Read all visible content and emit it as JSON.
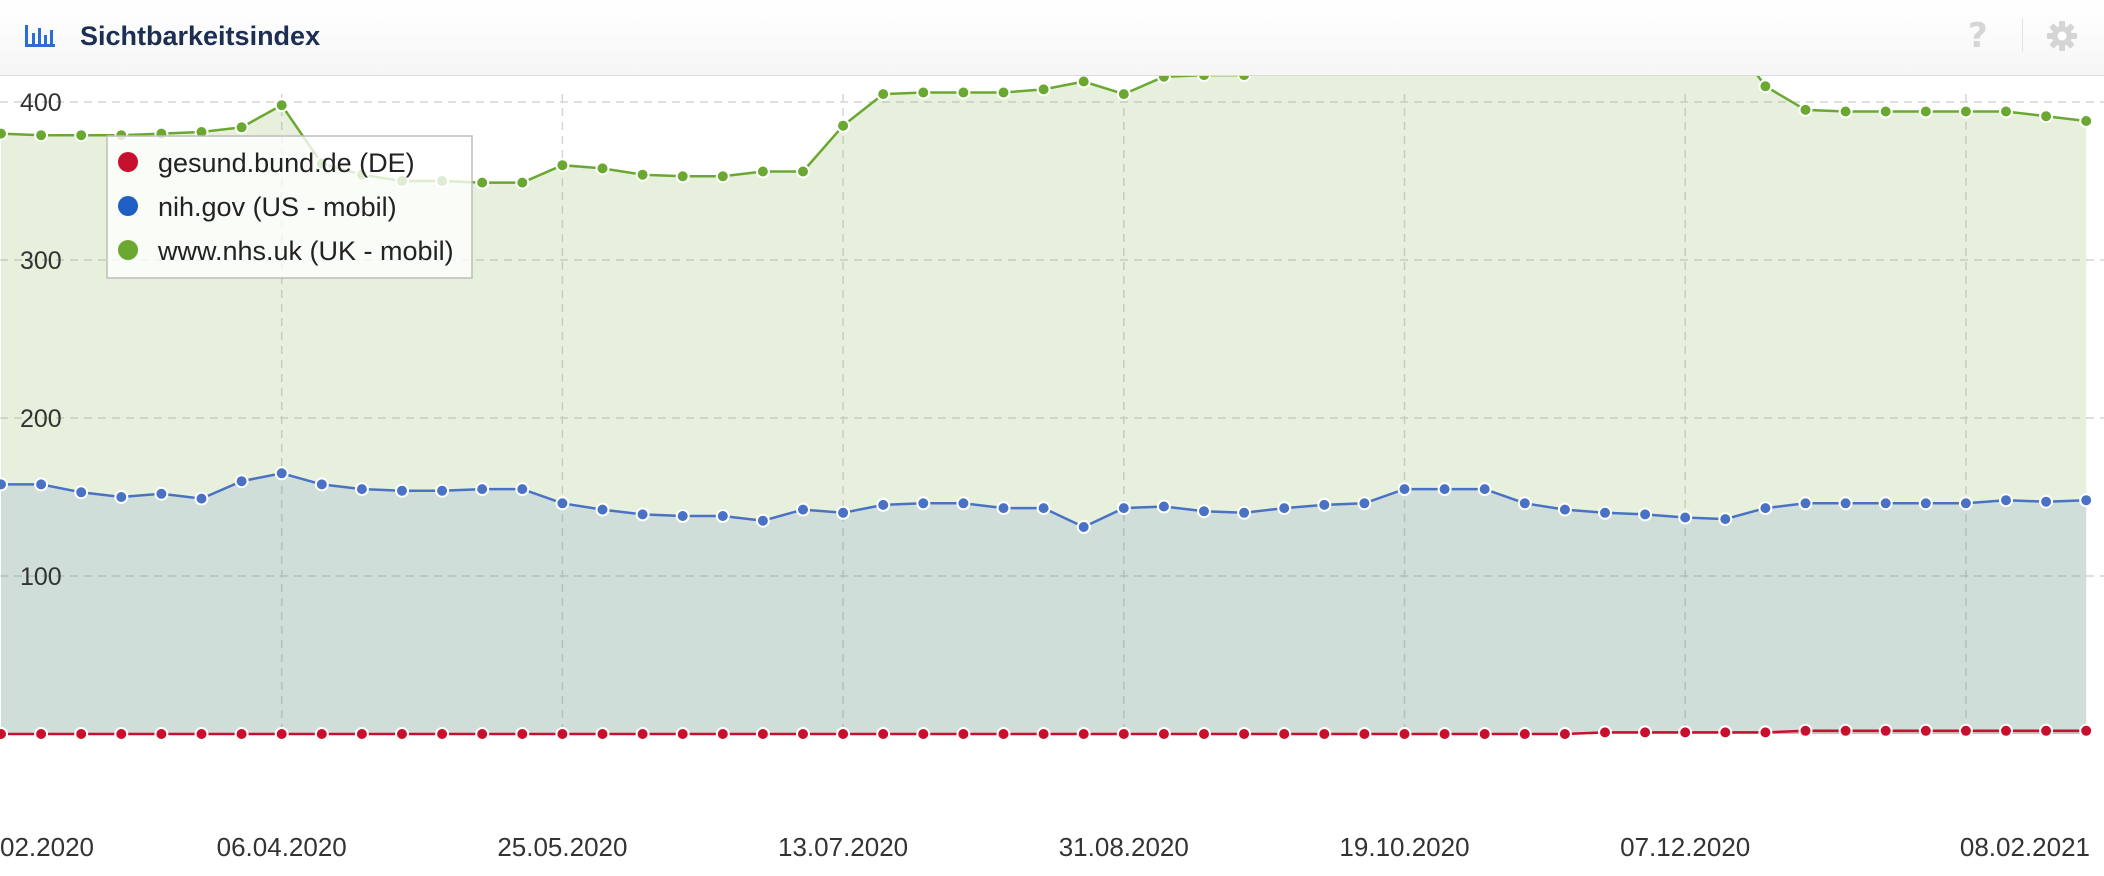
{
  "header": {
    "title": "Sichtbarkeitsindex",
    "help_symbol": "?"
  },
  "colors": {
    "red": "#c8102e",
    "blue": "#1f5fc4",
    "green": "#6aa832",
    "blue_line": "#4a72c4",
    "green_line": "#6aa832"
  },
  "icons": [
    "bar-chart-icon",
    "help-icon",
    "gear-icon"
  ],
  "chart_data": {
    "type": "line",
    "title": "",
    "xlabel": "",
    "ylabel": "",
    "ylim": [
      0,
      450
    ],
    "y_ticks": [
      100,
      200,
      300,
      400
    ],
    "x_tick_labels": [
      "02.2020",
      "06.04.2020",
      "25.05.2020",
      "13.07.2020",
      "31.08.2020",
      "19.10.2020",
      "07.12.2020",
      "08.02.2021"
    ],
    "grid": true,
    "legend_position": "top-left",
    "series": [
      {
        "name": "gesund.bund.de (DE)",
        "color": "#c8102e",
        "values": [
          0,
          0,
          0,
          0,
          0,
          0,
          0,
          0,
          0,
          0,
          0,
          0,
          0,
          0,
          0,
          0,
          0,
          0,
          0,
          0,
          0,
          0,
          0,
          0,
          0,
          0,
          0,
          0,
          0,
          0,
          0,
          0,
          0,
          0,
          0,
          0,
          0,
          0,
          0,
          0,
          1,
          1,
          1,
          1,
          1,
          2,
          2,
          2,
          2,
          2,
          2,
          2,
          2
        ]
      },
      {
        "name": "nih.gov (US - mobil)",
        "color": "#1f5fc4",
        "values": [
          158,
          158,
          153,
          150,
          152,
          149,
          160,
          165,
          158,
          155,
          154,
          154,
          155,
          155,
          146,
          142,
          139,
          138,
          138,
          135,
          142,
          140,
          145,
          146,
          146,
          143,
          143,
          131,
          143,
          144,
          141,
          140,
          143,
          145,
          146,
          155,
          155,
          155,
          146,
          142,
          140,
          139,
          137,
          136,
          143,
          146,
          146,
          146,
          146,
          146,
          148,
          147,
          148
        ]
      },
      {
        "name": "www.nhs.uk (UK - mobil)",
        "color": "#6aa832",
        "values": [
          380,
          379,
          379,
          379,
          380,
          381,
          384,
          398,
          361,
          354,
          350,
          350,
          349,
          349,
          360,
          358,
          354,
          353,
          353,
          356,
          356,
          385,
          405,
          406,
          406,
          406,
          408,
          413,
          405,
          416,
          417,
          417,
          426,
          428,
          442,
          443,
          448,
          447,
          449,
          451,
          448,
          448,
          446,
          445,
          410,
          395,
          394,
          394,
          394,
          394,
          394,
          391,
          388
        ]
      }
    ]
  }
}
